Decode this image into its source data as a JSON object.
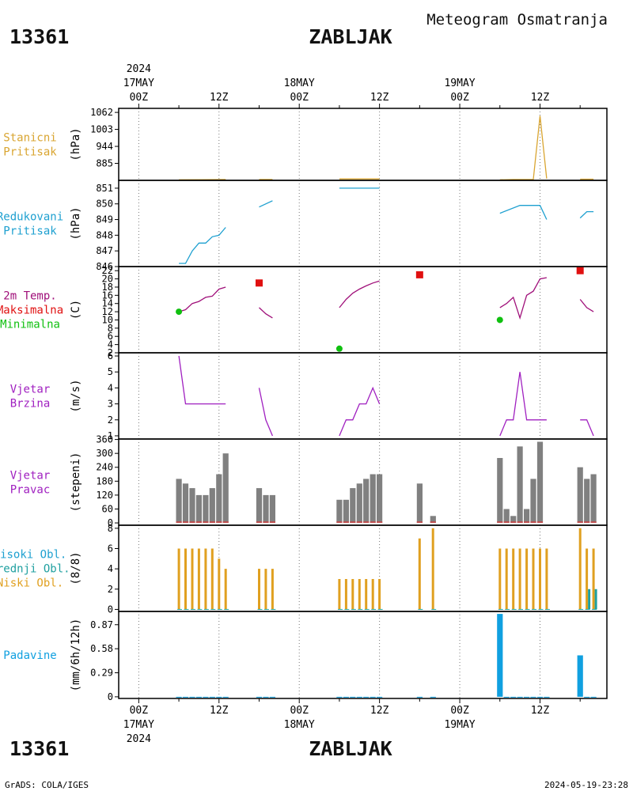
{
  "header": {
    "station_id": "13361",
    "station_name": "ZABLJAK",
    "title": "Meteogram Osmatranja"
  },
  "footer": {
    "left": "GrADS: COLA/IGES",
    "right": "2024-05-19-23:28"
  },
  "axis": {
    "year": "2024",
    "days": [
      {
        "label": "17MAY",
        "hour": 0
      },
      {
        "label": "18MAY",
        "hour": 24
      },
      {
        "label": "19MAY",
        "hour": 48
      }
    ],
    "ticks": [
      {
        "hour": 0,
        "label": "00Z"
      },
      {
        "hour": 12,
        "label": "12Z"
      },
      {
        "hour": 24,
        "label": "00Z"
      },
      {
        "hour": 36,
        "label": "12Z"
      },
      {
        "hour": 48,
        "label": "00Z"
      },
      {
        "hour": 60,
        "label": "12Z"
      }
    ],
    "xlim": [
      -3,
      70
    ]
  },
  "colors": {
    "pressure": "#d9a531",
    "reduced": "#1ea0d0",
    "tmax": "#e01010",
    "tmin": "#10c010",
    "temp_line": "#a0107a",
    "wind": "#a020c0",
    "dir_bar": "#808080",
    "dir_base": "#d04040",
    "cloud_low": "#e0a020",
    "cloud_mid": "#20a0a0",
    "precip": "#10a0e0"
  },
  "chart_data": [
    {
      "id": "station-pressure",
      "type": "line",
      "labels": [
        {
          "text": "Stanicni",
          "color": "#d9a531"
        },
        {
          "text": "Pritisak",
          "color": "#d9a531"
        }
      ],
      "unit": "(hPa)",
      "yticks": [
        885,
        944,
        1003,
        1062
      ],
      "ylim": [
        826,
        1076
      ],
      "series": [
        {
          "color": "#d9a531",
          "segments": [
            [
              [
                6,
                828
              ],
              [
                13,
                829
              ]
            ],
            [
              [
                18,
                829
              ],
              [
                20,
                829
              ]
            ],
            [
              [
                30,
                831
              ],
              [
                36,
                831
              ]
            ],
            [
              [
                54,
                828
              ],
              [
                56,
                829
              ],
              [
                59,
                829
              ],
              [
                60,
                1050
              ],
              [
                61,
                832
              ]
            ],
            [
              [
                66,
                830
              ],
              [
                68,
                830
              ]
            ]
          ]
        }
      ]
    },
    {
      "id": "reduced-pressure",
      "type": "line",
      "labels": [
        {
          "text": "Redukovani",
          "color": "#1ea0d0"
        },
        {
          "text": "Pritisak",
          "color": "#1ea0d0"
        }
      ],
      "unit": "(hPa)",
      "yticks": [
        846,
        847,
        848,
        849,
        850,
        851
      ],
      "ylim": [
        846,
        851.5
      ],
      "series": [
        {
          "color": "#1ea0d0",
          "segments": [
            [
              [
                6,
                846.2
              ],
              [
                7,
                846.2
              ],
              [
                8,
                847.0
              ],
              [
                9,
                847.5
              ],
              [
                10,
                847.5
              ],
              [
                11,
                847.9
              ],
              [
                12,
                848.0
              ],
              [
                13,
                848.5
              ]
            ],
            [
              [
                18,
                849.8
              ],
              [
                20,
                850.2
              ]
            ],
            [
              [
                30,
                851.0
              ],
              [
                36,
                851.0
              ]
            ],
            [
              [
                54,
                849.4
              ],
              [
                57,
                849.9
              ],
              [
                60,
                849.9
              ],
              [
                61,
                849.0
              ]
            ],
            [
              [
                66,
                849.1
              ],
              [
                67,
                849.5
              ],
              [
                68,
                849.5
              ]
            ]
          ]
        }
      ]
    },
    {
      "id": "temperature",
      "type": "line",
      "labels": [
        {
          "text": "2m Temp.",
          "color": "#a0107a"
        },
        {
          "text": "Maksimalna",
          "color": "#e01010"
        },
        {
          "text": "Minimalna",
          "color": "#10c010"
        }
      ],
      "unit": "(C)",
      "yticks": [
        2,
        4,
        6,
        8,
        10,
        12,
        14,
        16,
        18,
        20,
        22
      ],
      "ylim": [
        2,
        23
      ],
      "series": [
        {
          "color": "#a0107a",
          "segments": [
            [
              [
                6,
                12
              ],
              [
                7,
                12.5
              ],
              [
                8,
                14
              ],
              [
                9,
                14.5
              ],
              [
                10,
                15.5
              ],
              [
                11,
                15.8
              ],
              [
                12,
                17.5
              ],
              [
                13,
                18
              ]
            ],
            [
              [
                18,
                13
              ],
              [
                19,
                11.5
              ],
              [
                20,
                10.5
              ]
            ],
            [
              [
                30,
                13
              ],
              [
                31,
                15
              ],
              [
                32,
                16.5
              ],
              [
                33,
                17.5
              ],
              [
                34,
                18.3
              ],
              [
                35,
                19
              ],
              [
                36,
                19.5
              ]
            ],
            [
              [
                54,
                13
              ],
              [
                55,
                14
              ],
              [
                56,
                15.5
              ],
              [
                57,
                10.5
              ],
              [
                58,
                16
              ],
              [
                59,
                17
              ],
              [
                60,
                20
              ],
              [
                61,
                20.3
              ]
            ],
            [
              [
                66,
                15
              ],
              [
                67,
                13
              ],
              [
                68,
                12
              ]
            ]
          ]
        }
      ],
      "max_points": [
        [
          18,
          19
        ],
        [
          42,
          21
        ],
        [
          66,
          22
        ]
      ],
      "min_points": [
        [
          6,
          12
        ],
        [
          30,
          3
        ],
        [
          54,
          10
        ]
      ]
    },
    {
      "id": "wind-speed",
      "type": "line",
      "labels": [
        {
          "text": "Vjetar",
          "color": "#a020c0"
        },
        {
          "text": "Brzina",
          "color": "#a020c0"
        }
      ],
      "unit": "(m/s)",
      "yticks": [
        1,
        2,
        3,
        4,
        5,
        6
      ],
      "ylim": [
        0.8,
        6.2
      ],
      "series": [
        {
          "color": "#a020c0",
          "segments": [
            [
              [
                6,
                6
              ],
              [
                7,
                3
              ],
              [
                13,
                3
              ]
            ],
            [
              [
                18,
                4
              ],
              [
                19,
                2
              ],
              [
                20,
                1
              ]
            ],
            [
              [
                30,
                1
              ],
              [
                31,
                2
              ],
              [
                32,
                2
              ],
              [
                33,
                3
              ],
              [
                34,
                3
              ],
              [
                35,
                4
              ],
              [
                36,
                3
              ]
            ],
            [
              [
                54,
                1
              ],
              [
                55,
                2
              ],
              [
                56,
                2
              ],
              [
                57,
                5
              ],
              [
                58,
                2
              ],
              [
                61,
                2
              ]
            ],
            [
              [
                66,
                2
              ],
              [
                67,
                2
              ],
              [
                68,
                1
              ]
            ]
          ]
        }
      ]
    },
    {
      "id": "wind-direction",
      "type": "bar",
      "labels": [
        {
          "text": "Vjetar",
          "color": "#a020c0"
        },
        {
          "text": "Pravac",
          "color": "#a020c0"
        }
      ],
      "unit": "(stepeni)",
      "yticks": [
        0,
        60,
        120,
        180,
        240,
        300,
        360
      ],
      "ylim": [
        -10,
        362
      ],
      "series": [
        {
          "name": "",
          "color": "#808080",
          "x": [
            6,
            7,
            8,
            9,
            10,
            11,
            12,
            13,
            18,
            19,
            20,
            30,
            31,
            32,
            33,
            34,
            35,
            36,
            42,
            44,
            54,
            55,
            56,
            57,
            58,
            59,
            60,
            66,
            67,
            68
          ],
          "values": [
            190,
            170,
            150,
            120,
            120,
            150,
            210,
            300,
            150,
            120,
            120,
            100,
            100,
            150,
            170,
            190,
            210,
            210,
            170,
            30,
            280,
            60,
            30,
            330,
            60,
            190,
            350,
            240,
            190,
            210
          ]
        }
      ]
    },
    {
      "id": "clouds",
      "type": "bar",
      "labels": [
        {
          "text": "Visoki Obl.",
          "color": "#1ea0d0"
        },
        {
          "text": "Srednji Obl.",
          "color": "#20a0a0"
        },
        {
          "text": "Niski Obl.",
          "color": "#e0a020"
        }
      ],
      "unit": "(8/8)",
      "yticks": [
        0,
        2,
        4,
        6,
        8
      ],
      "ylim": [
        -0.2,
        8.3
      ],
      "series": [
        {
          "name": "Niski Obl.",
          "color": "#e0a020",
          "x": [
            6,
            7,
            8,
            9,
            10,
            11,
            12,
            13,
            18,
            19,
            20,
            30,
            31,
            32,
            33,
            34,
            35,
            36,
            42,
            44,
            54,
            55,
            56,
            57,
            58,
            59,
            60,
            61,
            66,
            67,
            68
          ],
          "values": [
            6,
            6,
            6,
            6,
            6,
            6,
            5,
            4,
            4,
            4,
            4,
            3,
            3,
            3,
            3,
            3,
            3,
            3,
            7,
            8,
            6,
            6,
            6,
            6,
            6,
            6,
            6,
            6,
            8,
            6,
            6
          ]
        },
        {
          "name": "Srednji Obl.",
          "color": "#20a0a0",
          "x": [
            67,
            68
          ],
          "values": [
            2,
            2
          ]
        }
      ]
    },
    {
      "id": "precipitation",
      "type": "bar",
      "labels": [
        {
          "text": "Padavine",
          "color": "#10a0e0"
        }
      ],
      "unit": "(mm/6h/12h)",
      "yticks": [
        0,
        0.29,
        0.58,
        0.87
      ],
      "ylim": [
        -0.02,
        1.03
      ],
      "series": [
        {
          "name": "",
          "color": "#10a0e0",
          "x": [
            6,
            7,
            8,
            9,
            10,
            11,
            12,
            13,
            18,
            19,
            20,
            30,
            31,
            32,
            33,
            34,
            35,
            36,
            42,
            44,
            54,
            55,
            56,
            57,
            58,
            59,
            60,
            61,
            66,
            67,
            68
          ],
          "values": [
            0,
            0,
            0,
            0,
            0,
            0,
            0,
            0,
            0,
            0,
            0,
            0,
            0,
            0,
            0,
            0,
            0,
            0,
            0,
            0,
            1.0,
            0,
            0,
            0,
            0,
            0,
            0,
            0,
            0.5,
            0,
            0
          ]
        }
      ]
    }
  ]
}
